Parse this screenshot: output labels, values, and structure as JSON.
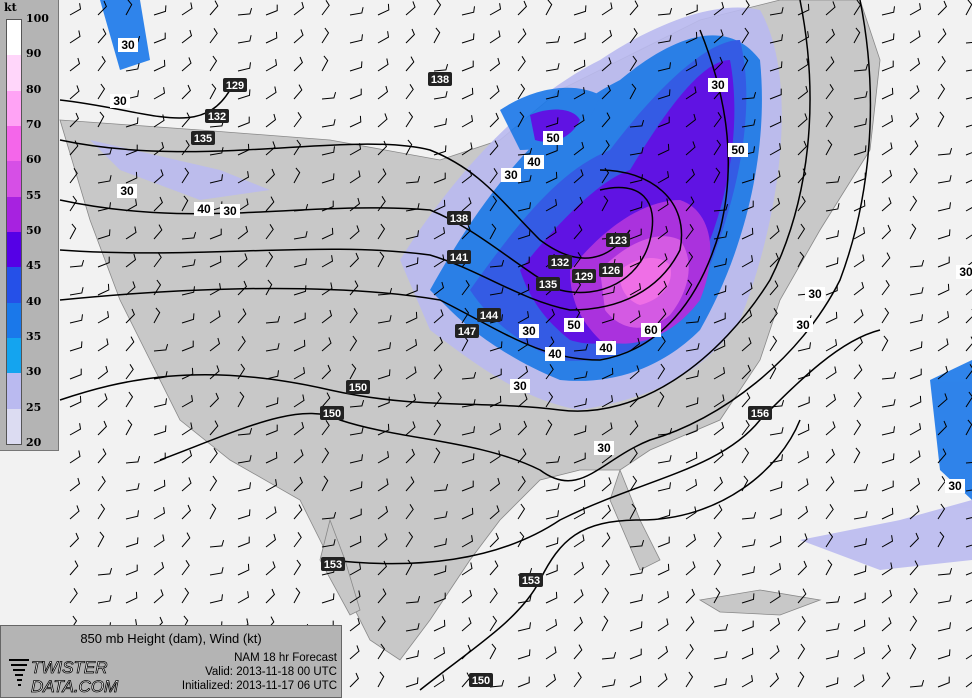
{
  "legend": {
    "unit": "kt",
    "ticks": [
      "100",
      "90",
      "80",
      "70",
      "60",
      "55",
      "50",
      "45",
      "40",
      "35",
      "30",
      "25",
      "20"
    ],
    "colors": [
      "#ffffff",
      "#ffd6fa",
      "#ffa3f5",
      "#f466ea",
      "#d64fe6",
      "#a722e0",
      "#5500e6",
      "#2550e8",
      "#1a78ea",
      "#14a4ef",
      "#babaf0",
      "#dcdcf2"
    ]
  },
  "map": {
    "land_color": "#c8c8c8",
    "water_color": "#f2f2f2",
    "height_contour_labels": [
      "129",
      "132",
      "135",
      "138",
      "138",
      "141",
      "144",
      "147",
      "123",
      "126",
      "129",
      "132",
      "135",
      "150",
      "150",
      "153",
      "153",
      "156",
      "150"
    ],
    "wind_labels": [
      "30",
      "30",
      "30",
      "30",
      "40",
      "30",
      "50",
      "40",
      "30",
      "30",
      "50",
      "40",
      "40",
      "30",
      "60",
      "50",
      "30",
      "30",
      "30",
      "30",
      "30"
    ]
  },
  "info": {
    "title": "850 mb Height (dam), Wind (kt)",
    "logo_text": "TWISTER DATA.COM",
    "model": "NAM 18 hr Forecast",
    "valid": "Valid: 2013-11-18 00 UTC",
    "initialized": "Initialized: 2013-11-17 06 UTC"
  }
}
